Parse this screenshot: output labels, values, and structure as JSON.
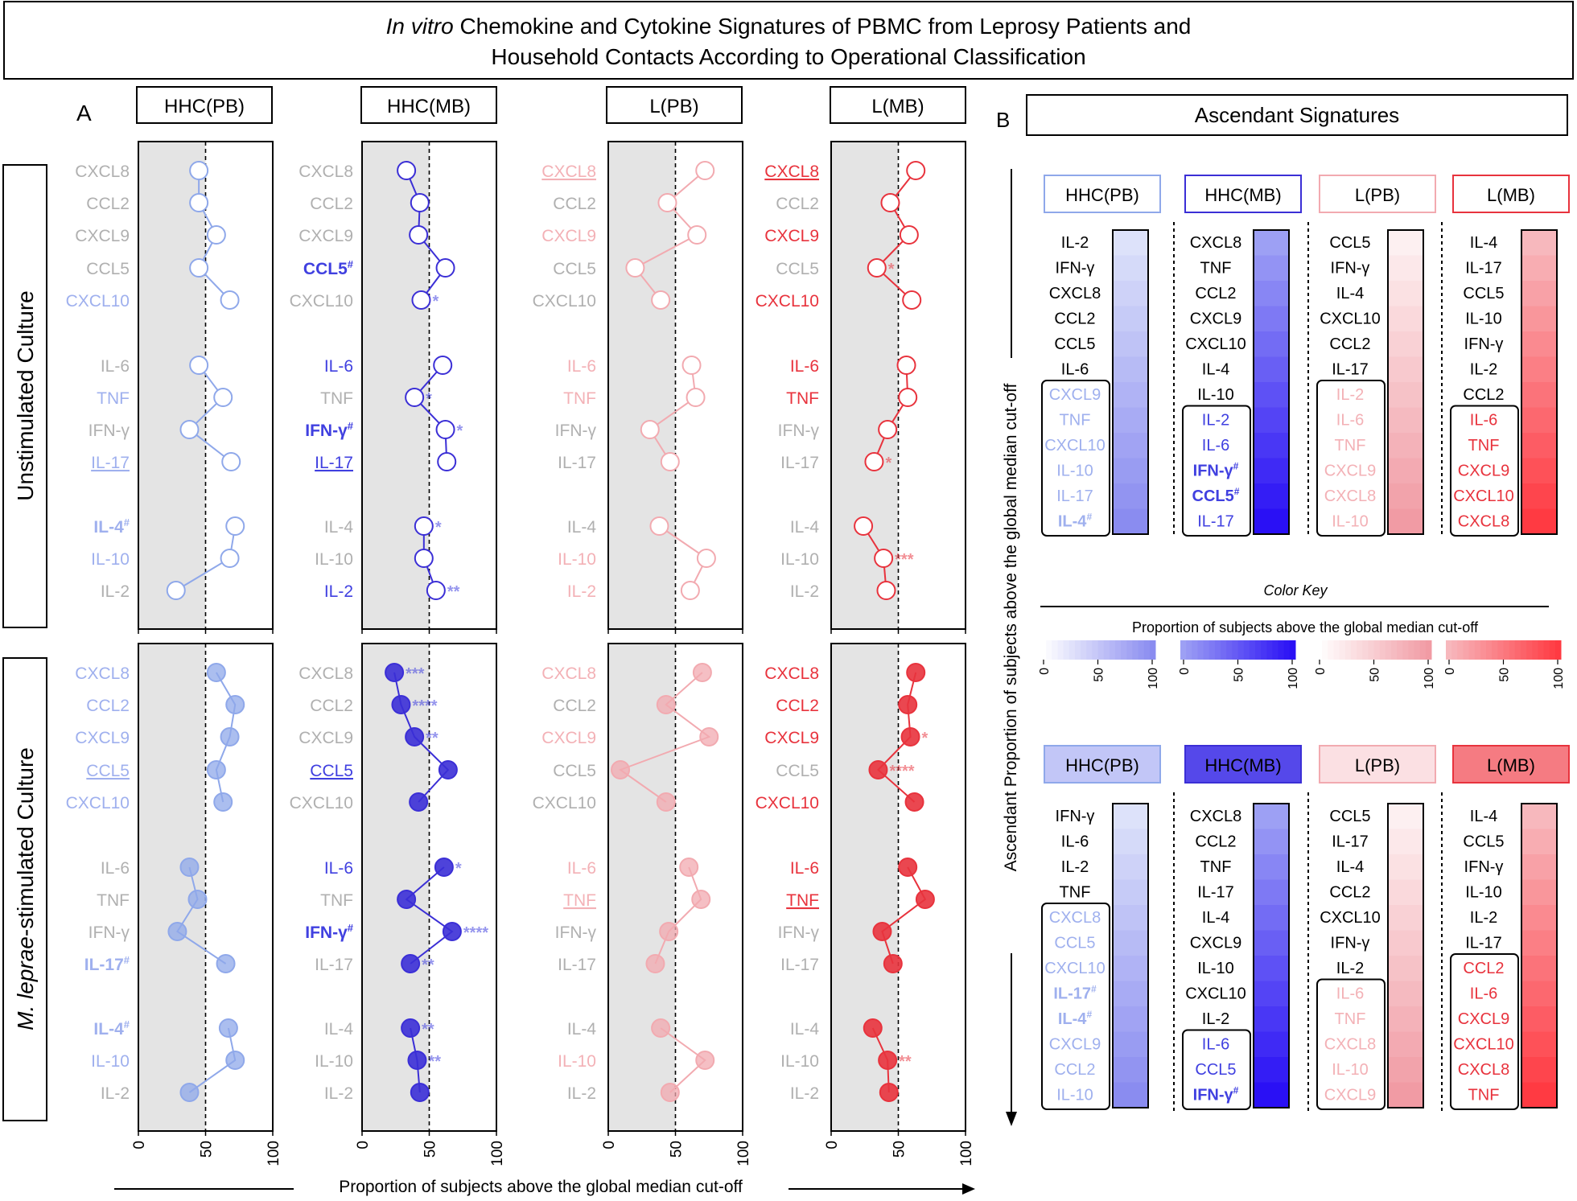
{
  "title": {
    "italic": "In vitro",
    "line1": " Chemokine and Cytokine Signatures of PBMC from Leprosy Patients and",
    "line2": "Household Contacts According to Operational Classification"
  },
  "panel_a_label": "A",
  "panel_b_label": "B",
  "culture_labels": {
    "unstimulated": "Unstimulated Culture",
    "stim_italic": "M. leprae",
    "stim_rest": "-stimulated Culture"
  },
  "group_labels": [
    "HHC(PB)",
    "HHC(MB)",
    "L(PB)",
    "L(MB)"
  ],
  "colors": {
    "hhcpb": "#8fa8ea",
    "hhcmb": "#3b2fd6",
    "lpb": "#f2aab0",
    "lmb": "#e8333d",
    "grey_label": "#b0b0b0",
    "shade": "#e4e4e4",
    "hhcpb_text": "#9fb0ee",
    "hhcmb_text": "#4040e0",
    "lpb_text": "#f3b1b6",
    "lmb_text": "#e8333d"
  },
  "x_ticks": [
    "0",
    "50",
    "100"
  ],
  "x_axis_label": "Proportion of subjects above the global median cut-off",
  "cutoff": 50,
  "b_title": "Ascendant Signatures",
  "b_axis_label": "Ascendant Proportion of subjects above the global median cut-off",
  "color_key": {
    "title": "Color Key",
    "label": "Proportion of subjects above the global median cut-off",
    "ticks": [
      "0",
      "50",
      "100"
    ]
  },
  "chart_data": [
    {
      "type": "scatter",
      "title": "Unstimulated Culture",
      "xlabel": "Proportion of subjects above the global median cut-off",
      "xlim": [
        0,
        100
      ],
      "cutoff": 50,
      "categories": [
        "CXCL8",
        "CCL2",
        "CXCL9",
        "CCL5",
        "CXCL10",
        "IL-6",
        "TNF",
        "IFN-γ",
        "IL-17",
        "IL-4",
        "IL-10",
        "IL-2"
      ],
      "series": [
        {
          "name": "HHC(PB)",
          "values": [
            45,
            45,
            58,
            45,
            68,
            45,
            63,
            38,
            69,
            72,
            68,
            28
          ],
          "label_style": [
            "g",
            "g",
            "g",
            "g",
            "c",
            "g",
            "c",
            "g",
            "cu",
            "cb#",
            "c",
            "g"
          ],
          "sig": [
            "",
            "",
            "",
            "",
            "",
            "",
            "",
            "",
            "",
            "",
            "",
            ""
          ]
        },
        {
          "name": "HHC(MB)",
          "values": [
            33,
            43,
            42,
            62,
            44,
            60,
            39,
            62,
            63,
            46,
            46,
            55
          ],
          "label_style": [
            "g",
            "g",
            "g",
            "cb#",
            "g",
            "c",
            "g",
            "cb#",
            "cu",
            "g",
            "g",
            "c"
          ],
          "sig": [
            "",
            "",
            "",
            "",
            "*",
            "",
            "*",
            "*",
            "",
            "*",
            "",
            "**"
          ]
        },
        {
          "name": "L(PB)",
          "values": [
            72,
            44,
            66,
            20,
            39,
            62,
            65,
            31,
            46,
            38,
            73,
            61
          ],
          "label_style": [
            "cu",
            "g",
            "c",
            "g",
            "g",
            "c",
            "c",
            "g",
            "g",
            "g",
            "c",
            "c"
          ],
          "sig": [
            "",
            "",
            "",
            "",
            "",
            "",
            "",
            "",
            "",
            "",
            "",
            ""
          ]
        },
        {
          "name": "L(MB)",
          "values": [
            63,
            44,
            58,
            34,
            60,
            56,
            57,
            42,
            32,
            24,
            39,
            41
          ],
          "label_style": [
            "cu",
            "g",
            "c",
            "g",
            "c",
            "c",
            "c",
            "g",
            "g",
            "g",
            "g",
            "g"
          ],
          "sig": [
            "",
            "",
            "",
            "*",
            "",
            "",
            "",
            "",
            "*",
            "",
            "***",
            ""
          ]
        }
      ]
    },
    {
      "type": "scatter",
      "title": "M. leprae-stimulated Culture",
      "xlabel": "Proportion of subjects above the global median cut-off",
      "xlim": [
        0,
        100
      ],
      "cutoff": 50,
      "categories": [
        "CXCL8",
        "CCL2",
        "CXCL9",
        "CCL5",
        "CXCL10",
        "IL-6",
        "TNF",
        "IFN-γ",
        "IL-17",
        "IL-4",
        "IL-10",
        "IL-2"
      ],
      "series": [
        {
          "name": "HHC(PB)",
          "values": [
            58,
            72,
            68,
            58,
            63,
            38,
            44,
            29,
            65,
            67,
            72,
            38
          ],
          "label_style": [
            "c",
            "c",
            "c",
            "cu",
            "c",
            "g",
            "g",
            "g",
            "cb#",
            "cb#",
            "c",
            "g"
          ],
          "sig": [
            "",
            "",
            "",
            "",
            "",
            "",
            "",
            "",
            "",
            "",
            "",
            ""
          ]
        },
        {
          "name": "HHC(MB)",
          "values": [
            24,
            29,
            39,
            64,
            42,
            61,
            33,
            67,
            36,
            36,
            41,
            43
          ],
          "label_style": [
            "g",
            "g",
            "g",
            "cu",
            "g",
            "c",
            "g",
            "cb#",
            "g",
            "g",
            "g",
            "g"
          ],
          "sig": [
            "***",
            "****",
            "**",
            "",
            "",
            "*",
            "",
            "****",
            "**",
            "**",
            "**",
            ""
          ]
        },
        {
          "name": "L(PB)",
          "values": [
            70,
            43,
            75,
            9,
            43,
            60,
            69,
            45,
            35,
            39,
            72,
            46
          ],
          "label_style": [
            "c",
            "g",
            "c",
            "g",
            "g",
            "c",
            "cu",
            "g",
            "g",
            "g",
            "c",
            "g"
          ],
          "sig": [
            "",
            "",
            "",
            "",
            "",
            "",
            "",
            "",
            "",
            "",
            "",
            ""
          ]
        },
        {
          "name": "L(MB)",
          "values": [
            63,
            57,
            59,
            35,
            62,
            57,
            70,
            38,
            46,
            31,
            42,
            43
          ],
          "label_style": [
            "c",
            "c",
            "c",
            "g",
            "c",
            "c",
            "cu",
            "g",
            "g",
            "g",
            "g",
            "g"
          ],
          "sig": [
            "",
            "",
            "*",
            "****",
            "",
            "",
            "",
            "",
            "",
            "",
            "**",
            ""
          ]
        }
      ]
    },
    {
      "type": "heatmap",
      "title": "Ascendant Signatures - Unstimulated Culture",
      "columns": [
        {
          "name": "HHC(PB)",
          "items": [
            "IL-2",
            "IFN-γ",
            "CXCL8",
            "CCL2",
            "CCL5",
            "IL-6",
            "CXCL9",
            "TNF",
            "CXCL10",
            "IL-10",
            "IL-17",
            "IL-4#"
          ],
          "values": [
            28,
            38,
            45,
            45,
            45,
            45,
            58,
            63,
            68,
            68,
            69,
            72
          ],
          "boxed_from": 6
        },
        {
          "name": "HHC(MB)",
          "items": [
            "CXCL8",
            "TNF",
            "CCL2",
            "CXCL9",
            "CXCL10",
            "IL-4",
            "IL-10",
            "IL-2",
            "IL-6",
            "IFN-γ#",
            "CCL5#",
            "IL-17"
          ],
          "values": [
            33,
            39,
            43,
            42,
            44,
            46,
            46,
            55,
            60,
            62,
            62,
            63
          ],
          "boxed_from": 7
        },
        {
          "name": "L(PB)",
          "items": [
            "CCL5",
            "IFN-γ",
            "IL-4",
            "CXCL10",
            "CCL2",
            "IL-17",
            "IL-2",
            "IL-6",
            "TNF",
            "CXCL9",
            "CXCL8",
            "IL-10"
          ],
          "values": [
            20,
            31,
            38,
            39,
            44,
            46,
            61,
            62,
            65,
            66,
            72,
            73
          ],
          "boxed_from": 6
        },
        {
          "name": "L(MB)",
          "items": [
            "IL-4",
            "IL-17",
            "CCL5",
            "IL-10",
            "IFN-γ",
            "IL-2",
            "CCL2",
            "IL-6",
            "TNF",
            "CXCL9",
            "CXCL10",
            "CXCL8"
          ],
          "values": [
            24,
            32,
            34,
            39,
            42,
            41,
            44,
            56,
            57,
            58,
            60,
            63
          ],
          "boxed_from": 7
        }
      ]
    },
    {
      "type": "heatmap",
      "title": "Ascendant Signatures - M. leprae-stimulated Culture",
      "columns": [
        {
          "name": "HHC(PB)",
          "items": [
            "IFN-γ",
            "IL-6",
            "IL-2",
            "TNF",
            "CXCL8",
            "CCL5",
            "CXCL10",
            "IL-17#",
            "IL-4#",
            "CXCL9",
            "CCL2",
            "IL-10"
          ],
          "values": [
            29,
            38,
            38,
            44,
            58,
            58,
            63,
            65,
            67,
            68,
            72,
            72
          ],
          "boxed_from": 4
        },
        {
          "name": "HHC(MB)",
          "items": [
            "CXCL8",
            "CCL2",
            "TNF",
            "IL-17",
            "IL-4",
            "CXCL9",
            "IL-10",
            "CXCL10",
            "IL-2",
            "IL-6",
            "CCL5",
            "IFN-γ#"
          ],
          "values": [
            24,
            29,
            33,
            36,
            36,
            39,
            41,
            42,
            43,
            61,
            64,
            67
          ],
          "boxed_from": 9
        },
        {
          "name": "L(PB)",
          "items": [
            "CCL5",
            "IL-17",
            "IL-4",
            "CCL2",
            "CXCL10",
            "IFN-γ",
            "IL-2",
            "IL-6",
            "TNF",
            "CXCL8",
            "IL-10",
            "CXCL9"
          ],
          "values": [
            9,
            35,
            39,
            43,
            43,
            45,
            46,
            60,
            69,
            70,
            72,
            75
          ],
          "boxed_from": 7
        },
        {
          "name": "L(MB)",
          "items": [
            "IL-4",
            "CCL5",
            "IFN-γ",
            "IL-10",
            "IL-2",
            "IL-17",
            "CCL2",
            "IL-6",
            "CXCL9",
            "CXCL10",
            "CXCL8",
            "TNF"
          ],
          "values": [
            31,
            35,
            38,
            42,
            43,
            46,
            57,
            57,
            59,
            62,
            63,
            70
          ],
          "boxed_from": 6
        }
      ]
    }
  ]
}
